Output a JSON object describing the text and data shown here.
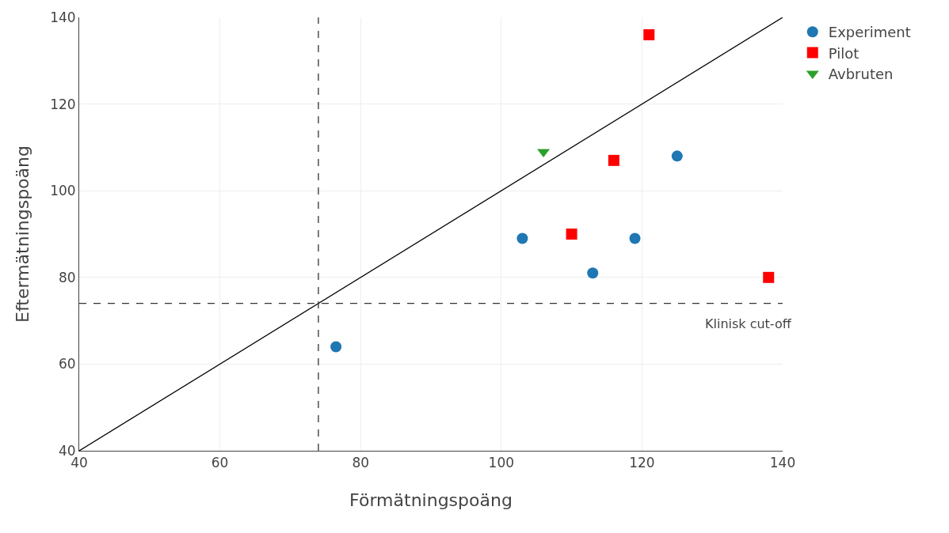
{
  "chart_data": {
    "type": "scatter",
    "xlabel": "Förmätningspoäng",
    "ylabel": "Eftermätningspoäng",
    "xlim": [
      40,
      140
    ],
    "ylim": [
      40,
      140
    ],
    "xticks": [
      40,
      60,
      80,
      100,
      120,
      140
    ],
    "yticks": [
      40,
      60,
      80,
      100,
      120,
      140
    ],
    "grid": true,
    "legend": "top right",
    "series": [
      {
        "name": "Experiment",
        "color": "#1f77b4",
        "marker": "circle",
        "x": [
          103,
          113,
          119,
          125,
          76.5
        ],
        "values": [
          89,
          81,
          89,
          108,
          64
        ]
      },
      {
        "name": "Pilot",
        "color": "#ff0000",
        "marker": "square",
        "x": [
          121,
          116,
          110,
          138
        ],
        "values": [
          136,
          107,
          90,
          80
        ]
      },
      {
        "name": "Avbruten",
        "color": "#2ca02c",
        "marker": "triangle",
        "x": [
          106
        ],
        "values": [
          109
        ]
      },
      {
        "type": "line",
        "color": "#000000",
        "marker": "none",
        "line_style": "solid",
        "x": [
          40,
          140
        ],
        "values": [
          40,
          140
        ]
      }
    ],
    "ref_lines": [
      {
        "axis": "x",
        "value": 74,
        "color": "#333333",
        "line_style": "dashed"
      },
      {
        "axis": "y",
        "value": 74,
        "color": "#333333",
        "line_style": "dashed",
        "label": "Klinisk cut-off"
      }
    ]
  }
}
